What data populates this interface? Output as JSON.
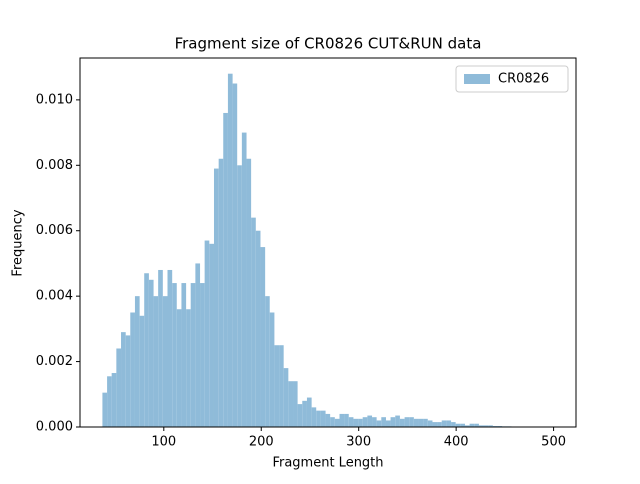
{
  "chart_data": {
    "type": "histogram",
    "title": "Fragment size of CR0826 CUT&RUN data",
    "xlabel": "Fragment Length",
    "ylabel": "Frequency",
    "bins": [
      37.0,
      41.8,
      46.5,
      51.3,
      56.1,
      60.9,
      65.6,
      70.4,
      75.2,
      79.9,
      84.7,
      89.5,
      94.2,
      99.0,
      103.8,
      108.6,
      113.3,
      118.1,
      122.9,
      127.6,
      132.4,
      137.2,
      141.9,
      146.7,
      151.5,
      156.3,
      161.0,
      165.8,
      170.6,
      175.3,
      180.1,
      184.9,
      189.6,
      194.4,
      199.2,
      204.0,
      208.7,
      213.5,
      218.3,
      223.0,
      227.8,
      232.6,
      237.3,
      242.1,
      246.9,
      251.7,
      256.4,
      261.2,
      266.0,
      270.7,
      275.5,
      280.3,
      285.0,
      289.8,
      294.6,
      299.4,
      304.1,
      308.9,
      313.7,
      318.4,
      323.2,
      328.0,
      332.7,
      337.5,
      342.3,
      347.1,
      351.8,
      356.6,
      361.4,
      366.1,
      370.9,
      375.7,
      380.4,
      385.2,
      390.0,
      394.8,
      399.5,
      404.3,
      409.1,
      413.8,
      418.6,
      423.4,
      428.1,
      432.9,
      437.7,
      442.5,
      447.2,
      452.0,
      456.8,
      461.5,
      466.3,
      471.1,
      475.8,
      480.6,
      485.4,
      490.2,
      494.9,
      499.7
    ],
    "series": [
      {
        "name": "CR0826",
        "color": "#8fbbd9",
        "values": [
          0.00105,
          0.00155,
          0.00165,
          0.0024,
          0.0029,
          0.0028,
          0.0035,
          0.004,
          0.0034,
          0.0047,
          0.0045,
          0.004,
          0.0048,
          0.004,
          0.0048,
          0.0044,
          0.0036,
          0.0044,
          0.0036,
          0.0044,
          0.005,
          0.0044,
          0.0057,
          0.0056,
          0.0079,
          0.0082,
          0.0096,
          0.0108,
          0.0105,
          0.008,
          0.009,
          0.0082,
          0.0064,
          0.006,
          0.0055,
          0.004,
          0.0035,
          0.0025,
          0.0025,
          0.0018,
          0.0014,
          0.0014,
          0.0007,
          0.0008,
          0.0009,
          0.0006,
          0.0005,
          0.0005,
          0.0004,
          0.0003,
          0.00025,
          0.0004,
          0.0004,
          0.0003,
          0.00025,
          0.00025,
          0.0003,
          0.00035,
          0.0003,
          0.0002,
          0.0003,
          0.0002,
          0.0003,
          0.00035,
          0.00025,
          0.0003,
          0.0003,
          0.00025,
          0.00025,
          0.00025,
          0.0002,
          0.00015,
          0.00015,
          0.0002,
          0.0002,
          0.00015,
          0.0001,
          0.0001,
          5e-05,
          0.0001,
          0.0001,
          5e-05,
          5e-05,
          5e-05,
          3e-05,
          3e-05,
          2e-05,
          2e-05,
          1e-05,
          1e-05,
          1e-05,
          1e-05,
          1e-05,
          1e-05,
          1e-05,
          1e-05,
          1e-05
        ]
      }
    ],
    "xlim": [
      14,
      523
    ],
    "ylim": [
      0,
      0.01128
    ],
    "xticks": [
      100,
      200,
      300,
      400,
      500
    ],
    "yticks": [
      {
        "value": 0,
        "label": "0.000"
      },
      {
        "value": 0.002,
        "label": "0.002"
      },
      {
        "value": 0.004,
        "label": "0.004"
      },
      {
        "value": 0.006,
        "label": "0.006"
      },
      {
        "value": 0.008,
        "label": "0.008"
      },
      {
        "value": 0.01,
        "label": "0.010"
      }
    ],
    "legend": "upper right",
    "grid": false
  }
}
